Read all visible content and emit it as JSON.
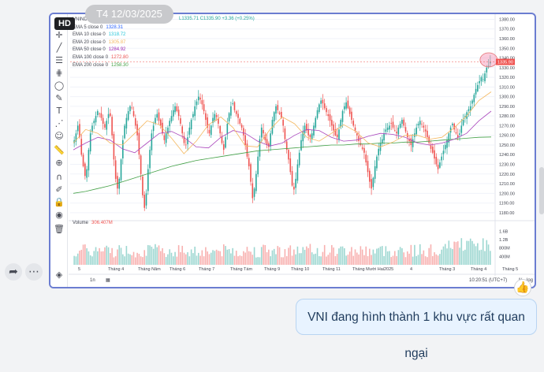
{
  "date_pill": "T4 12/03/2025",
  "hd_badge": "HD",
  "symbol_partial": "VNINDE",
  "ohlc_text": "L1335.71 C1335.90 +3.36 (+0.25%)",
  "legend": [
    {
      "label": "EMA 5 close 0",
      "value": "1328.31",
      "color": "#2962ff"
    },
    {
      "label": "EMA 10 close 0",
      "value": "1318.72",
      "color": "#26c6da"
    },
    {
      "label": "EMA 20 close 0",
      "value": "1305.87",
      "color": "#f4b860"
    },
    {
      "label": "EMA 50 close 0",
      "value": "1284.92",
      "color": "#9c27b0"
    },
    {
      "label": "EMA 100 close 0",
      "value": "1272.80",
      "color": "#ef5350"
    },
    {
      "label": "EMA 200 close 0",
      "value": "1258.30",
      "color": "#43a047"
    }
  ],
  "volume_label": "Volume",
  "volume_value": "306.407M",
  "price_axis": [
    "1380.00",
    "1370.00",
    "1360.00",
    "1350.00",
    "1340.00",
    "1330.00",
    "1320.00",
    "1310.00",
    "1300.00",
    "1290.00",
    "1280.00",
    "1270.00",
    "1260.00",
    "1250.00",
    "1240.00",
    "1230.00",
    "1220.00",
    "1210.00",
    "1200.00",
    "1190.00",
    "1180.00"
  ],
  "last_price_tag": "1335.90",
  "volume_axis": [
    "1.6B",
    "1.2B",
    "800M",
    "400M"
  ],
  "time_axis": [
    "5",
    "Tháng 4",
    "Tháng Năm",
    "Tháng 6",
    "Tháng 7",
    "Tháng Tám",
    "Tháng 9",
    "Tháng 10",
    "Tháng 11",
    "Tháng Mười Hai",
    "2025",
    "4",
    "Tháng 3",
    "Tháng 4",
    "Tháng 5"
  ],
  "timeframe": "1n",
  "clock": "10:20:51 (UTC+7)",
  "pct_btn": "%",
  "log_btn": "log",
  "message_text": "VNI đang hình thành 1 khu vực rất quan ngại",
  "chart_data": {
    "type": "candlestick",
    "ylim": [
      1175,
      1382
    ],
    "closes": [
      1255,
      1262,
      1270,
      1258,
      1240,
      1228,
      1218,
      1225,
      1245,
      1262,
      1270,
      1275,
      1280,
      1285,
      1282,
      1278,
      1272,
      1268,
      1275,
      1282,
      1280,
      1260,
      1235,
      1215,
      1205,
      1215,
      1235,
      1255,
      1270,
      1278,
      1285,
      1290,
      1288,
      1280,
      1270,
      1260,
      1240,
      1220,
      1198,
      1185,
      1200,
      1225,
      1245,
      1262,
      1270,
      1278,
      1282,
      1275,
      1270,
      1262,
      1255,
      1262,
      1268,
      1275,
      1280,
      1286,
      1290,
      1285,
      1280,
      1272,
      1262,
      1252,
      1250,
      1258,
      1268,
      1276,
      1282,
      1290,
      1295,
      1300,
      1297,
      1292,
      1285,
      1276,
      1268,
      1262,
      1270,
      1278,
      1282,
      1279,
      1272,
      1262,
      1252,
      1245,
      1258,
      1272,
      1283,
      1290,
      1293,
      1286,
      1282,
      1278,
      1272,
      1268,
      1260,
      1250,
      1238,
      1228,
      1212,
      1195,
      1205,
      1220,
      1238,
      1256,
      1268,
      1262,
      1255,
      1250,
      1248,
      1262,
      1276,
      1284,
      1290,
      1286,
      1282,
      1278,
      1270,
      1256,
      1245,
      1235,
      1222,
      1208,
      1204,
      1215,
      1230,
      1242,
      1255,
      1264,
      1270,
      1265,
      1260,
      1258,
      1262,
      1270,
      1278,
      1286,
      1292,
      1296,
      1293,
      1288,
      1284,
      1280,
      1275,
      1270,
      1265,
      1260,
      1258,
      1266,
      1276,
      1285,
      1290,
      1294,
      1288,
      1282,
      1276,
      1270,
      1265,
      1260,
      1254,
      1250,
      1246,
      1242,
      1232,
      1222,
      1212,
      1205,
      1216,
      1228,
      1238,
      1246,
      1252,
      1256,
      1262,
      1266,
      1268,
      1270,
      1272,
      1268,
      1265,
      1262,
      1268,
      1272,
      1276,
      1270,
      1264,
      1258,
      1254,
      1250,
      1256,
      1262,
      1268,
      1272,
      1275,
      1272,
      1268,
      1264,
      1258,
      1252,
      1246,
      1242,
      1236,
      1230,
      1225,
      1232,
      1238,
      1244,
      1250,
      1255,
      1262,
      1268,
      1272,
      1266,
      1262,
      1258,
      1262,
      1270,
      1276,
      1280,
      1284,
      1287,
      1290,
      1296,
      1302,
      1308,
      1312,
      1316,
      1320,
      1318,
      1324,
      1330,
      1332,
      1335.9
    ],
    "ema20": [
      1252,
      1266,
      1262,
      1252,
      1250,
      1262,
      1275,
      1271,
      1257,
      1241,
      1254,
      1271,
      1279,
      1268,
      1249,
      1248,
      1266,
      1279,
      1272,
      1258,
      1254,
      1262,
      1271,
      1264,
      1252,
      1248,
      1253,
      1260,
      1260,
      1256,
      1258,
      1268,
      1280,
      1296,
      1305
    ],
    "ema50": [
      1245,
      1252,
      1258,
      1255,
      1246,
      1242,
      1252,
      1262,
      1264,
      1258,
      1248,
      1247,
      1258,
      1265,
      1262,
      1254,
      1249,
      1252,
      1260,
      1266,
      1265,
      1258,
      1254,
      1255,
      1259,
      1262,
      1261,
      1258,
      1252,
      1250,
      1252,
      1256,
      1262,
      1275,
      1285
    ],
    "ema200": [
      1200,
      1202,
      1205,
      1208,
      1212,
      1216,
      1220,
      1224,
      1228,
      1231,
      1234,
      1236,
      1238,
      1240,
      1242,
      1244,
      1245,
      1246,
      1247,
      1248,
      1249,
      1250,
      1250,
      1251,
      1251,
      1252,
      1252,
      1253,
      1253,
      1254,
      1255,
      1256,
      1257,
      1258,
      1258.3
    ],
    "volume_ylim": [
      0,
      1800
    ]
  }
}
